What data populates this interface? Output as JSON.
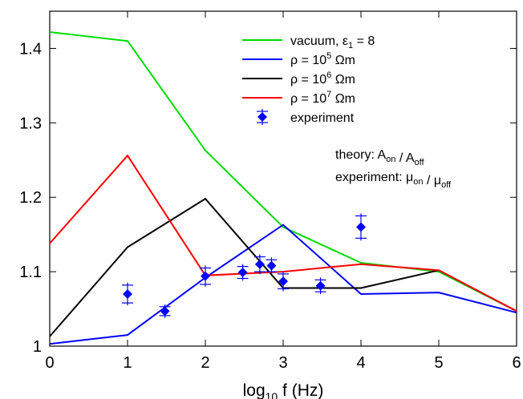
{
  "chart_data": {
    "type": "line",
    "xlabel": "log10 f  (Hz)",
    "ylabel": "",
    "xlim": [
      0,
      6
    ],
    "ylim": [
      1,
      1.45
    ],
    "x_ticks": [
      0,
      1,
      2,
      3,
      4,
      5,
      6
    ],
    "y_ticks": [
      1,
      1.1,
      1.2,
      1.3,
      1.4
    ],
    "x_tick_labels": [
      "0",
      "1",
      "2",
      "3",
      "4",
      "5",
      "6"
    ],
    "y_tick_labels": [
      "1",
      "1.1",
      "1.2",
      "1.3",
      "1.4"
    ],
    "grid": false,
    "legend_position": "top-right",
    "series": [
      {
        "name": "vacuum, ε1 = 8",
        "color": "#00dd00",
        "x": [
          0,
          1,
          2,
          3,
          4,
          5,
          6
        ],
        "y": [
          1.422,
          1.41,
          1.263,
          1.16,
          1.112,
          1.1,
          1.047
        ]
      },
      {
        "name": "ρ = 10^5 Ωm",
        "color": "#0000ff",
        "x": [
          0,
          1,
          2,
          3,
          4,
          5,
          6
        ],
        "y": [
          1.003,
          1.015,
          1.092,
          1.163,
          1.07,
          1.072,
          1.045
        ]
      },
      {
        "name": "ρ = 10^6 Ωm",
        "color": "#000000",
        "x": [
          0,
          1,
          2,
          3,
          4,
          5,
          6
        ],
        "y": [
          1.013,
          1.133,
          1.198,
          1.078,
          1.078,
          1.102,
          1.047
        ]
      },
      {
        "name": "ρ = 10^7 Ωm",
        "color": "#ff0000",
        "x": [
          0,
          1,
          2,
          3,
          4,
          5,
          6
        ],
        "y": [
          1.138,
          1.256,
          1.095,
          1.1,
          1.11,
          1.102,
          1.047
        ]
      }
    ],
    "experiment": {
      "name": "experiment",
      "color": "#0000ff",
      "points": [
        {
          "x": 1.0,
          "y": 1.07,
          "err": 0.012
        },
        {
          "x": 1.48,
          "y": 1.047,
          "err": 0.006
        },
        {
          "x": 2.0,
          "y": 1.094,
          "err": 0.011
        },
        {
          "x": 2.48,
          "y": 1.099,
          "err": 0.008
        },
        {
          "x": 2.7,
          "y": 1.11,
          "err": 0.01
        },
        {
          "x": 2.85,
          "y": 1.108,
          "err": 0.008
        },
        {
          "x": 3.0,
          "y": 1.087,
          "err": 0.01
        },
        {
          "x": 3.48,
          "y": 1.081,
          "err": 0.008
        },
        {
          "x": 4.0,
          "y": 1.16,
          "err": 0.015
        }
      ]
    },
    "legend_labels": [
      {
        "main": "vacuum, ε",
        "sub": "1",
        "tail": " = 8"
      },
      {
        "main": "ρ = 10",
        "sup": "5",
        "tail": " Ωm"
      },
      {
        "main": "ρ = 10",
        "sup": "6",
        "tail": " Ωm"
      },
      {
        "main": "ρ = 10",
        "sup": "7",
        "tail": " Ωm"
      },
      {
        "main": "experiment"
      }
    ],
    "xlabel_parts": {
      "main": "log",
      "sub": "10",
      "tail": " f  (Hz)"
    },
    "annotations": [
      {
        "parts": [
          {
            "t": "theory: A"
          },
          {
            "t": "on",
            "sub": true
          },
          {
            "t": " / A"
          },
          {
            "t": "off",
            "sub": true
          }
        ]
      },
      {
        "parts": [
          {
            "t": "experiment: μ"
          },
          {
            "t": "on",
            "sub": true
          },
          {
            "t": " / μ"
          },
          {
            "t": "off",
            "sub": true
          }
        ]
      }
    ]
  }
}
